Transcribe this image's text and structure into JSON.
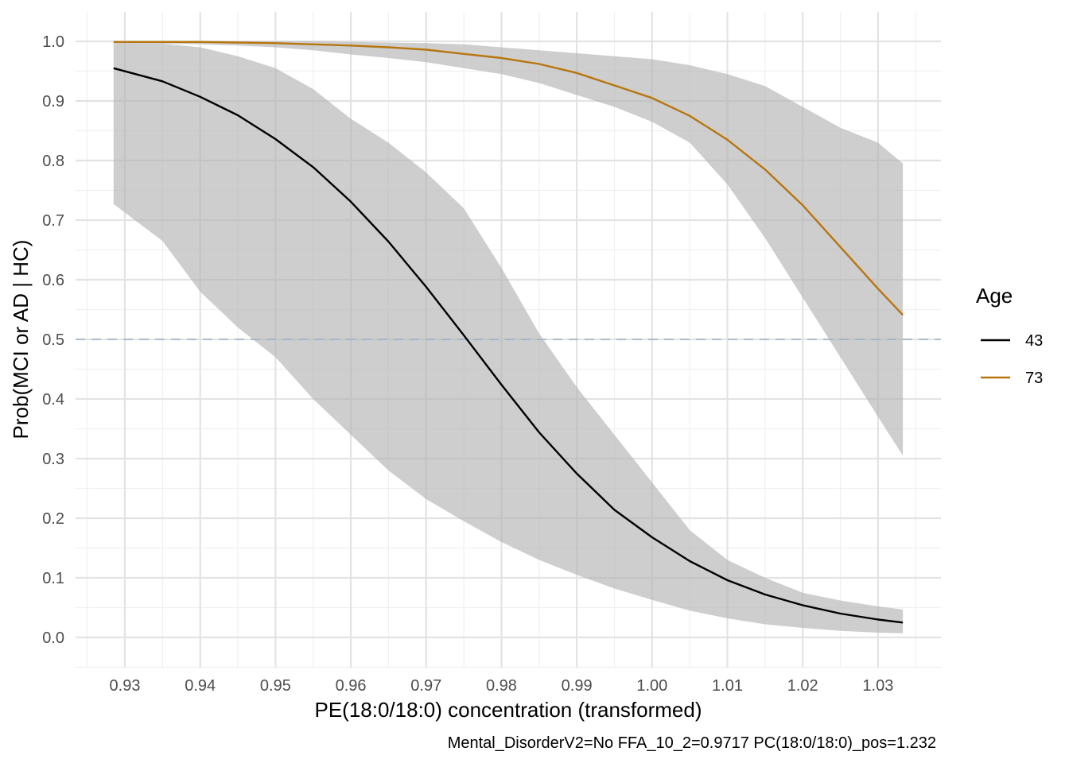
{
  "chart_data": {
    "type": "line",
    "xlabel": "PE(18:0/18:0) concentration (transformed)",
    "ylabel": "Prob(MCI or AD | HC)",
    "caption": "Mental_DisorderV2=No  FFA_10_2=0.9717  PC(18:0/18:0)_pos=1.232",
    "xlim": [
      0.9245,
      1.0378
    ],
    "ylim": [
      -0.048,
      1.048
    ],
    "x_ticks": [
      "0.93",
      "0.94",
      "0.95",
      "0.96",
      "0.97",
      "0.98",
      "0.99",
      "1.00",
      "1.01",
      "1.02",
      "1.03"
    ],
    "y_ticks": [
      "0.0",
      "0.1",
      "0.2",
      "0.3",
      "0.4",
      "0.5",
      "0.6",
      "0.7",
      "0.8",
      "0.9",
      "1.0"
    ],
    "grid": true,
    "reference_line": {
      "y": 0.5,
      "style": "dashed",
      "color": "#9fb3c8"
    },
    "legend": {
      "title": "Age",
      "placement": "right"
    },
    "series": [
      {
        "name": "43",
        "color": "#000000",
        "x": [
          0.9285,
          0.935,
          0.94,
          0.945,
          0.95,
          0.955,
          0.96,
          0.965,
          0.97,
          0.975,
          0.98,
          0.985,
          0.99,
          0.995,
          1.0,
          1.005,
          1.01,
          1.015,
          1.02,
          1.025,
          1.03,
          1.0333
        ],
        "y": [
          0.955,
          0.933,
          0.907,
          0.876,
          0.836,
          0.789,
          0.731,
          0.664,
          0.588,
          0.507,
          0.424,
          0.344,
          0.275,
          0.214,
          0.168,
          0.128,
          0.096,
          0.072,
          0.054,
          0.04,
          0.03,
          0.025
        ],
        "lower": [
          0.727,
          0.665,
          0.58,
          0.52,
          0.47,
          0.4,
          0.34,
          0.28,
          0.232,
          0.195,
          0.16,
          0.13,
          0.105,
          0.082,
          0.063,
          0.045,
          0.032,
          0.022,
          0.016,
          0.011,
          0.008,
          0.007
        ],
        "upper": [
          0.997,
          0.996,
          0.99,
          0.975,
          0.955,
          0.92,
          0.87,
          0.83,
          0.78,
          0.72,
          0.62,
          0.51,
          0.42,
          0.34,
          0.26,
          0.18,
          0.13,
          0.1,
          0.075,
          0.062,
          0.052,
          0.047
        ]
      },
      {
        "name": "73",
        "color": "#b8760f",
        "x": [
          0.9285,
          0.935,
          0.94,
          0.945,
          0.95,
          0.955,
          0.96,
          0.965,
          0.97,
          0.975,
          0.98,
          0.985,
          0.99,
          0.995,
          1.0,
          1.005,
          1.01,
          1.015,
          1.02,
          1.025,
          1.03,
          1.0333
        ],
        "y": [
          0.999,
          0.999,
          0.999,
          0.998,
          0.997,
          0.995,
          0.993,
          0.99,
          0.986,
          0.979,
          0.972,
          0.962,
          0.947,
          0.926,
          0.905,
          0.875,
          0.835,
          0.785,
          0.725,
          0.655,
          0.585,
          0.541
        ],
        "lower": [
          0.997,
          0.996,
          0.995,
          0.993,
          0.99,
          0.985,
          0.978,
          0.972,
          0.965,
          0.955,
          0.945,
          0.93,
          0.91,
          0.89,
          0.865,
          0.83,
          0.76,
          0.67,
          0.57,
          0.47,
          0.37,
          0.305
        ],
        "upper": [
          1.0,
          1.0,
          1.0,
          1.0,
          1.0,
          1.0,
          0.999,
          0.998,
          0.997,
          0.995,
          0.99,
          0.985,
          0.98,
          0.975,
          0.97,
          0.96,
          0.945,
          0.925,
          0.89,
          0.855,
          0.83,
          0.795
        ]
      }
    ]
  }
}
